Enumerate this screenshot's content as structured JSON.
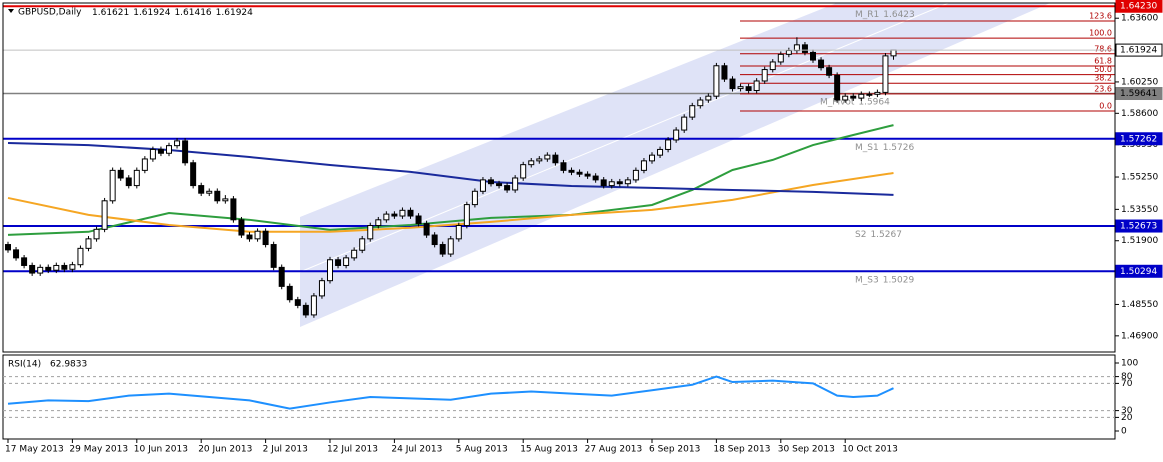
{
  "chart_data": {
    "type": "candlestick",
    "symbol": "GBPUSD,Daily",
    "ohlc": [
      [
        1.517,
        1.5185,
        1.5127,
        1.5142
      ],
      [
        1.5142,
        1.5157,
        1.5085,
        1.51
      ],
      [
        1.51,
        1.5115,
        1.5045,
        1.506
      ],
      [
        1.506,
        1.5075,
        1.5005,
        1.502
      ],
      [
        1.502,
        1.5065,
        1.5005,
        1.505
      ],
      [
        1.505,
        1.5065,
        1.502,
        1.5035
      ],
      [
        1.5035,
        1.5075,
        1.502,
        1.506
      ],
      [
        1.506,
        1.5075,
        1.5025,
        1.504
      ],
      [
        1.504,
        1.5079,
        1.5025,
        1.5064
      ],
      [
        1.5064,
        1.5165,
        1.5049,
        1.515
      ],
      [
        1.515,
        1.5215,
        1.5135,
        1.52
      ],
      [
        1.52,
        1.5265,
        1.5185,
        1.525
      ],
      [
        1.525,
        1.5415,
        1.5235,
        1.54
      ],
      [
        1.54,
        1.5575,
        1.5385,
        1.556
      ],
      [
        1.556,
        1.5575,
        1.5505,
        1.552
      ],
      [
        1.552,
        1.5535,
        1.5465,
        1.548
      ],
      [
        1.548,
        1.5575,
        1.5465,
        1.556
      ],
      [
        1.556,
        1.5635,
        1.5545,
        1.562
      ],
      [
        1.562,
        1.5685,
        1.5605,
        1.567
      ],
      [
        1.567,
        1.5685,
        1.5635,
        1.565
      ],
      [
        1.565,
        1.5705,
        1.5635,
        1.569
      ],
      [
        1.569,
        1.573,
        1.5675,
        1.5715
      ],
      [
        1.5715,
        1.573,
        1.5585,
        1.56
      ],
      [
        1.56,
        1.5615,
        1.5465,
        1.548
      ],
      [
        1.548,
        1.5495,
        1.5425,
        1.544
      ],
      [
        1.544,
        1.5465,
        1.5425,
        1.545
      ],
      [
        1.545,
        1.5465,
        1.5385,
        1.54
      ],
      [
        1.54,
        1.543,
        1.5385,
        1.541
      ],
      [
        1.541,
        1.5425,
        1.5285,
        1.53
      ],
      [
        1.53,
        1.5315,
        1.5205,
        1.522
      ],
      [
        1.522,
        1.5235,
        1.5185,
        1.52
      ],
      [
        1.52,
        1.5255,
        1.5185,
        1.524
      ],
      [
        1.524,
        1.5255,
        1.5155,
        1.517
      ],
      [
        1.517,
        1.5185,
        1.5035,
        1.505
      ],
      [
        1.505,
        1.5065,
        1.4935,
        1.495
      ],
      [
        1.495,
        1.4965,
        1.4865,
        1.488
      ],
      [
        1.488,
        1.4895,
        1.4835,
        1.485
      ],
      [
        1.485,
        1.4865,
        1.4785,
        1.48
      ],
      [
        1.48,
        1.4915,
        1.4785,
        1.49
      ],
      [
        1.49,
        1.4995,
        1.4885,
        1.498
      ],
      [
        1.498,
        1.5105,
        1.4965,
        1.509
      ],
      [
        1.509,
        1.5105,
        1.5045,
        1.506
      ],
      [
        1.506,
        1.5115,
        1.5045,
        1.51
      ],
      [
        1.51,
        1.5155,
        1.5085,
        1.514
      ],
      [
        1.514,
        1.5215,
        1.5125,
        1.52
      ],
      [
        1.52,
        1.5285,
        1.5185,
        1.527
      ],
      [
        1.527,
        1.5315,
        1.5255,
        1.53
      ],
      [
        1.53,
        1.5345,
        1.5285,
        1.533
      ],
      [
        1.533,
        1.5345,
        1.5305,
        1.532
      ],
      [
        1.532,
        1.5365,
        1.5305,
        1.535
      ],
      [
        1.535,
        1.5365,
        1.5305,
        1.532
      ],
      [
        1.532,
        1.5335,
        1.5265,
        1.528
      ],
      [
        1.528,
        1.5295,
        1.5205,
        1.522
      ],
      [
        1.522,
        1.5235,
        1.5155,
        1.517
      ],
      [
        1.517,
        1.5185,
        1.5105,
        1.512
      ],
      [
        1.512,
        1.5215,
        1.5105,
        1.52
      ],
      [
        1.52,
        1.5285,
        1.5185,
        1.527
      ],
      [
        1.527,
        1.5395,
        1.5255,
        1.538
      ],
      [
        1.538,
        1.5465,
        1.5365,
        1.545
      ],
      [
        1.545,
        1.5525,
        1.5435,
        1.551
      ],
      [
        1.551,
        1.5525,
        1.5475,
        1.549
      ],
      [
        1.549,
        1.5505,
        1.5465,
        1.548
      ],
      [
        1.548,
        1.5495,
        1.5442,
        1.5457
      ],
      [
        1.5457,
        1.5535,
        1.5442,
        1.552
      ],
      [
        1.552,
        1.5605,
        1.5505,
        1.559
      ],
      [
        1.559,
        1.5625,
        1.5575,
        1.561
      ],
      [
        1.561,
        1.5635,
        1.5595,
        1.562
      ],
      [
        1.562,
        1.5655,
        1.5605,
        1.564
      ],
      [
        1.564,
        1.5655,
        1.5585,
        1.56
      ],
      [
        1.56,
        1.5615,
        1.5545,
        1.556
      ],
      [
        1.556,
        1.5575,
        1.5535,
        1.555
      ],
      [
        1.555,
        1.5565,
        1.5525,
        1.554
      ],
      [
        1.554,
        1.5555,
        1.5515,
        1.553
      ],
      [
        1.553,
        1.5545,
        1.5495,
        1.551
      ],
      [
        1.551,
        1.5525,
        1.5465,
        1.548
      ],
      [
        1.548,
        1.5515,
        1.5465,
        1.55
      ],
      [
        1.55,
        1.5515,
        1.5475,
        1.549
      ],
      [
        1.549,
        1.5525,
        1.5475,
        1.551
      ],
      [
        1.551,
        1.5575,
        1.5495,
        1.556
      ],
      [
        1.556,
        1.5625,
        1.5545,
        1.561
      ],
      [
        1.561,
        1.5655,
        1.5595,
        1.564
      ],
      [
        1.564,
        1.5685,
        1.5625,
        1.567
      ],
      [
        1.567,
        1.5735,
        1.5655,
        1.572
      ],
      [
        1.572,
        1.5787,
        1.5705,
        1.5772
      ],
      [
        1.5772,
        1.5855,
        1.5757,
        1.584
      ],
      [
        1.584,
        1.5915,
        1.5825,
        1.59
      ],
      [
        1.59,
        1.5945,
        1.5885,
        1.593
      ],
      [
        1.593,
        1.5965,
        1.5915,
        1.595
      ],
      [
        1.595,
        1.6125,
        1.5935,
        1.611
      ],
      [
        1.611,
        1.6125,
        1.6025,
        1.604
      ],
      [
        1.604,
        1.6055,
        1.5975,
        1.599
      ],
      [
        1.599,
        1.6015,
        1.5975,
        1.6
      ],
      [
        1.6,
        1.6015,
        1.5965,
        1.598
      ],
      [
        1.598,
        1.6045,
        1.5965,
        1.603
      ],
      [
        1.603,
        1.6105,
        1.6015,
        1.609
      ],
      [
        1.609,
        1.6145,
        1.6075,
        1.613
      ],
      [
        1.613,
        1.6185,
        1.6115,
        1.617
      ],
      [
        1.617,
        1.6205,
        1.6155,
        1.619
      ],
      [
        1.619,
        1.626,
        1.6175,
        1.622
      ],
      [
        1.622,
        1.6235,
        1.6165,
        1.618
      ],
      [
        1.618,
        1.6195,
        1.6125,
        1.614
      ],
      [
        1.614,
        1.6155,
        1.6085,
        1.61
      ],
      [
        1.61,
        1.6115,
        1.6045,
        1.606
      ],
      [
        1.606,
        1.6075,
        1.5915,
        1.593
      ],
      [
        1.593,
        1.5965,
        1.5915,
        1.595
      ],
      [
        1.595,
        1.5965,
        1.5925,
        1.594
      ],
      [
        1.594,
        1.5975,
        1.5925,
        1.596
      ],
      [
        1.596,
        1.5975,
        1.5945,
        1.596
      ],
      [
        1.596,
        1.5985,
        1.5945,
        1.597
      ],
      [
        1.597,
        1.6177,
        1.5955,
        1.6162
      ],
      [
        1.61621,
        1.61924,
        1.61416,
        1.61924
      ]
    ],
    "ylim": [
      1.4605,
      1.644
    ],
    "yticks": [
      {
        "value": 1.636,
        "label": "1.63600"
      },
      {
        "value": 1.6025,
        "label": "1.60250"
      },
      {
        "value": 1.586,
        "label": "1.58600"
      },
      {
        "value": 1.5695,
        "label": "1.56950"
      },
      {
        "value": 1.5525,
        "label": "1.55250"
      },
      {
        "value": 1.5355,
        "label": "1.53550"
      },
      {
        "value": 1.519,
        "label": "1.51900"
      },
      {
        "value": 1.4855,
        "label": "1.48550"
      },
      {
        "value": 1.469,
        "label": "1.46900"
      }
    ],
    "xticks": [
      {
        "value": 0,
        "label": "17 May 2013"
      },
      {
        "value": 8,
        "label": "29 May 2013"
      },
      {
        "value": 16,
        "label": "10 Jun 2013"
      },
      {
        "value": 24,
        "label": "20 Jun 2013"
      },
      {
        "value": 32,
        "label": "2 Jul 2013"
      },
      {
        "value": 40,
        "label": "12 Jul 2013"
      },
      {
        "value": 48,
        "label": "24 Jul 2013"
      },
      {
        "value": 56,
        "label": "5 Aug 2013"
      },
      {
        "value": 64,
        "label": "15 Aug 2013"
      },
      {
        "value": 72,
        "label": "27 Aug 2013"
      },
      {
        "value": 80,
        "label": "6 Sep 2013"
      },
      {
        "value": 88,
        "label": "18 Sep 2013"
      },
      {
        "value": 96,
        "label": "30 Sep 2013"
      },
      {
        "value": 104,
        "label": "10 Oct 2013"
      }
    ],
    "moving_averages": [
      {
        "color": "#2e9e3e",
        "x": [
          0,
          10,
          20,
          30,
          40,
          50,
          60,
          70,
          80,
          85,
          90,
          95,
          100,
          105,
          110
        ],
        "values": [
          1.5221,
          1.5237,
          1.5336,
          1.53,
          1.5247,
          1.5273,
          1.531,
          1.5326,
          1.5378,
          1.5457,
          1.5562,
          1.5615,
          1.5693,
          1.5746,
          1.5798
        ]
      },
      {
        "color": "#f5a623",
        "x": [
          0,
          10,
          20,
          30,
          40,
          50,
          60,
          70,
          80,
          90,
          100,
          110
        ],
        "values": [
          1.5415,
          1.5326,
          1.5273,
          1.5237,
          1.5237,
          1.5258,
          1.5289,
          1.5326,
          1.5352,
          1.5405,
          1.5483,
          1.5546
        ]
      },
      {
        "color": "#1a2a9c",
        "x": [
          0,
          10,
          20,
          30,
          40,
          50,
          60,
          70,
          80,
          90,
          100,
          110
        ],
        "values": [
          1.5704,
          1.5693,
          1.5667,
          1.563,
          1.5588,
          1.5552,
          1.5499,
          1.5478,
          1.5468,
          1.5457,
          1.5447,
          1.5431
        ]
      }
    ],
    "pivots": [
      {
        "name": "M_R1",
        "value": 1.6423,
        "color": "#e00000",
        "box": {
          "value": 1.6423,
          "label": "1.64230"
        }
      },
      {
        "name": "M_Pivot",
        "value": 1.5964,
        "color": "#808080",
        "box": 1.59641
      },
      {
        "name": "M_S1",
        "value": 1.5726,
        "color": "#0000c8",
        "box": 1.57262
      },
      {
        "name": "S2",
        "value": 1.5267,
        "color": "#0000c8",
        "box": 1.52673
      },
      {
        "name": "M_S3",
        "value": 1.5029,
        "color": "#0000c8",
        "box": 1.50294
      }
    ],
    "fibonacci": {
      "color": "#b00000",
      "price_0": 1.5872,
      "price_100": 1.6255,
      "levels": [
        123.6,
        {
          "value": 100,
          "label": "100.0"
        },
        78.6,
        61.8,
        {
          "value": 50,
          "label": "50.0"
        },
        38.2,
        23.6,
        {
          "value": 0,
          "label": "0.0"
        }
      ]
    },
    "rsi": {
      "title": "RSI(14)",
      "color": "#1e90ff",
      "ylim": [
        0,
        100
      ],
      "yticks": [
        100,
        80,
        70,
        30,
        20,
        0
      ],
      "x": [
        0,
        5,
        10,
        15,
        20,
        25,
        30,
        35,
        40,
        45,
        50,
        55,
        60,
        65,
        70,
        75,
        80,
        85,
        88,
        90,
        95,
        100,
        103,
        105,
        108,
        110
      ],
      "values": [
        40,
        45,
        44,
        52,
        55,
        50,
        45,
        33,
        42,
        50,
        48,
        46,
        55,
        58,
        55,
        52,
        60,
        68,
        80,
        72,
        74,
        70,
        52,
        50,
        52,
        62.9833
      ]
    }
  }
}
